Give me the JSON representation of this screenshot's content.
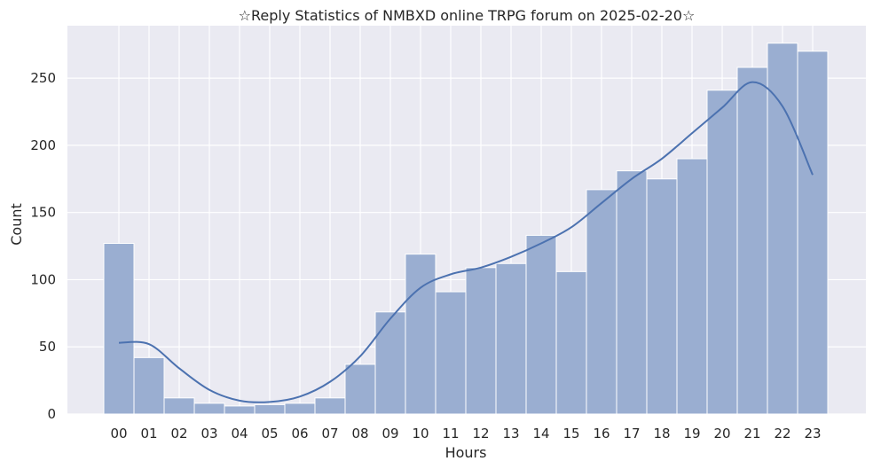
{
  "chart_data": {
    "type": "bar",
    "title": "☆Reply Statistics of NMBXD online TRPG forum on 2025-02-20☆",
    "xlabel": "Hours",
    "ylabel": "Count",
    "categories": [
      "00",
      "01",
      "02",
      "03",
      "04",
      "05",
      "06",
      "07",
      "08",
      "09",
      "10",
      "11",
      "12",
      "13",
      "14",
      "15",
      "16",
      "17",
      "18",
      "19",
      "20",
      "21",
      "22",
      "23"
    ],
    "values": [
      127,
      42,
      12,
      8,
      6,
      7,
      8,
      12,
      37,
      76,
      119,
      91,
      109,
      112,
      133,
      106,
      167,
      181,
      175,
      190,
      241,
      258,
      276,
      270
    ],
    "kde": [
      53,
      52,
      34,
      18,
      10,
      9,
      13,
      24,
      43,
      71,
      94,
      104,
      109,
      117,
      127,
      139,
      157,
      175,
      190,
      209,
      228,
      247,
      229,
      178
    ],
    "y_ticks": [
      0,
      50,
      100,
      150,
      200,
      250
    ],
    "ylim": [
      0,
      289
    ],
    "grid": true,
    "colors": {
      "background": "#eaeaf2",
      "bar": "#9aaed1",
      "bar_edge": "#ffffff",
      "kde_line": "#4c72b0",
      "grid": "#ffffff"
    }
  }
}
